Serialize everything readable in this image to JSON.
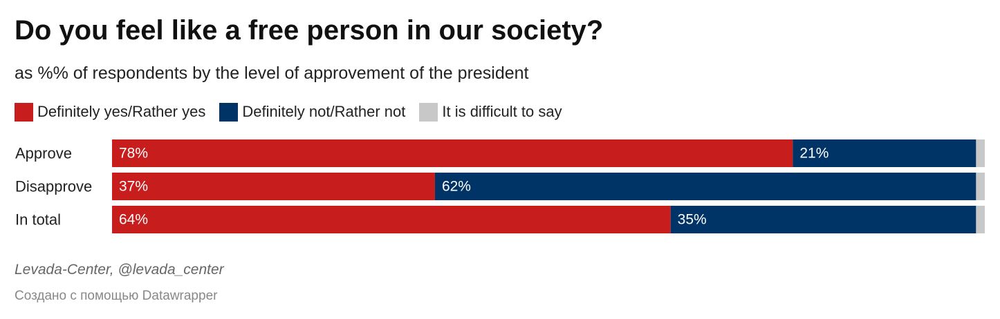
{
  "colors": {
    "yes": "#c71e1d",
    "no": "#003366",
    "unsure": "#c8c8c8"
  },
  "chart_data": {
    "type": "bar",
    "orientation": "horizontal",
    "stacked": true,
    "title": "Do you feel like a free person in our society?",
    "subtitle": "as %% of respondents by the level of approvement of the president",
    "categories": [
      "Approve",
      "Disapprove",
      "In total"
    ],
    "series": [
      {
        "name": "Definitely yes/Rather yes",
        "color": "#c71e1d",
        "values": [
          78,
          37,
          64
        ],
        "labels": [
          "78%",
          "37%",
          "64%"
        ]
      },
      {
        "name": "Definitely not/Rather not",
        "color": "#003366",
        "values": [
          21,
          62,
          35
        ],
        "labels": [
          "21%",
          "62%",
          "35%"
        ]
      },
      {
        "name": "It is difficult to say",
        "color": "#c8c8c8",
        "values": [
          1,
          1,
          1
        ],
        "labels": [
          "",
          "",
          ""
        ]
      }
    ],
    "xlim": [
      0,
      100
    ],
    "legend_position": "top-left",
    "grid": false
  },
  "footer": {
    "source": "Levada-Center, @levada_center",
    "credit": "Создано с помощью Datawrapper"
  }
}
